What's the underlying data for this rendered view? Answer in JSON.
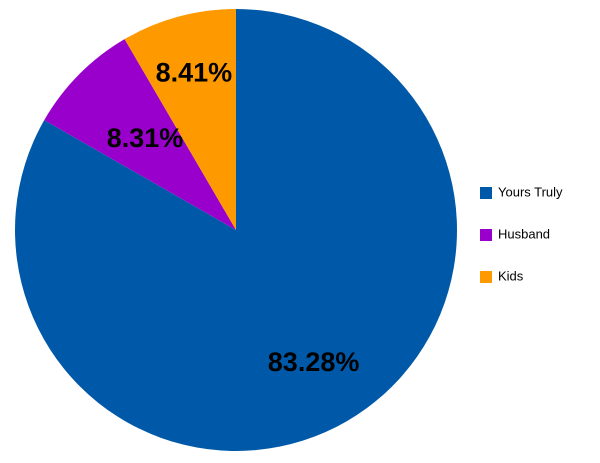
{
  "chart_data": {
    "type": "pie",
    "title": "",
    "categories": [
      "Yours Truly",
      "Husband",
      "Kids"
    ],
    "values": [
      83.28,
      8.31,
      8.41
    ],
    "labels": [
      "83.28%",
      "8.31%",
      "8.41%"
    ],
    "colors": [
      "#0059a8",
      "#9900cc",
      "#ff9900"
    ],
    "legend": "right",
    "start": "top",
    "direction": "clockwise"
  }
}
